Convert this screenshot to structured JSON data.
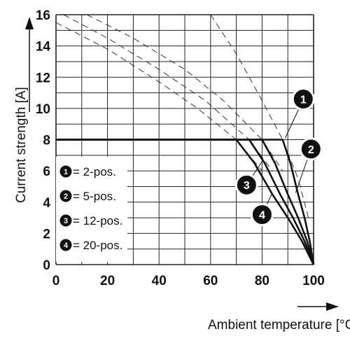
{
  "chart_data": {
    "type": "line",
    "xlabel": "Ambient temperature [°C]",
    "ylabel": "Current strength [A]",
    "xlim": [
      0,
      100
    ],
    "ylim": [
      0,
      16
    ],
    "xticks": [
      0,
      20,
      40,
      60,
      80,
      100
    ],
    "yticks": [
      0,
      2,
      4,
      6,
      8,
      10,
      12,
      14,
      16
    ],
    "grid": true,
    "series": [
      {
        "name": "2-pos.",
        "marker": "1",
        "points": [
          [
            0,
            8
          ],
          [
            88,
            8
          ],
          [
            91,
            6.5
          ],
          [
            94,
            4.5
          ],
          [
            96.5,
            3
          ],
          [
            98.5,
            1.5
          ],
          [
            100,
            0
          ]
        ]
      },
      {
        "name": "5-pos.",
        "marker": "2",
        "points": [
          [
            0,
            8
          ],
          [
            80,
            8
          ],
          [
            85,
            6.5
          ],
          [
            90,
            4.5
          ],
          [
            94,
            3
          ],
          [
            97.5,
            1.5
          ],
          [
            100,
            0
          ]
        ]
      },
      {
        "name": "12-pos.",
        "marker": "3",
        "points": [
          [
            0,
            8
          ],
          [
            75,
            8
          ],
          [
            81,
            6.5
          ],
          [
            87,
            4.5
          ],
          [
            92,
            3
          ],
          [
            96.5,
            1.5
          ],
          [
            100,
            0
          ]
        ]
      },
      {
        "name": "20-pos.",
        "marker": "4",
        "points": [
          [
            0,
            8
          ],
          [
            70,
            8
          ],
          [
            77,
            6.5
          ],
          [
            84,
            4.5
          ],
          [
            90,
            3
          ],
          [
            95.5,
            1.5
          ],
          [
            100,
            0
          ]
        ]
      }
    ],
    "dashed_curves": [
      [
        [
          60,
          16
        ],
        [
          70,
          13.5
        ],
        [
          80,
          10.5
        ],
        [
          88,
          8
        ],
        [
          94,
          5.5
        ],
        [
          98,
          3
        ]
      ],
      [
        [
          12,
          16
        ],
        [
          30,
          14.5
        ],
        [
          50,
          12.5
        ],
        [
          65,
          10.5
        ],
        [
          80,
          8
        ],
        [
          88,
          6
        ]
      ],
      [
        [
          3,
          16
        ],
        [
          20,
          14.5
        ],
        [
          40,
          12.5
        ],
        [
          58,
          10.5
        ],
        [
          75,
          8
        ],
        [
          84,
          6
        ]
      ],
      [
        [
          0,
          15.5
        ],
        [
          20,
          13.8
        ],
        [
          40,
          11.7
        ],
        [
          55,
          10
        ],
        [
          70,
          8
        ],
        [
          80,
          6
        ]
      ]
    ],
    "callouts": [
      {
        "label": "1",
        "x": 96,
        "y": 10.6
      },
      {
        "label": "2",
        "x": 99,
        "y": 7.4
      },
      {
        "label": "3",
        "x": 74,
        "y": 5.1
      },
      {
        "label": "4",
        "x": 80,
        "y": 3.2
      }
    ],
    "legend": {
      "placement": "lower-left",
      "entries": [
        {
          "marker": "1",
          "text": "= 2-pos."
        },
        {
          "marker": "2",
          "text": "= 5-pos."
        },
        {
          "marker": "3",
          "text": "= 12-pos."
        },
        {
          "marker": "4",
          "text": "= 20-pos."
        }
      ]
    }
  }
}
